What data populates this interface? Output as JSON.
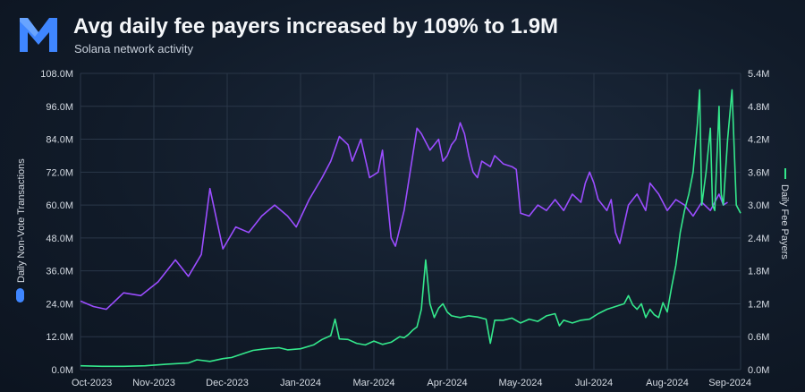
{
  "header": {
    "title": "Avg daily fee payers increased by 109% to 1.9M",
    "subtitle": "Solana network activity"
  },
  "colors": {
    "transactions": "#9b4dff",
    "fee_payers": "#34e88c",
    "logo": "#3f86ff",
    "grid": "#2a3748"
  },
  "chart_data": {
    "type": "line",
    "title": "Avg daily fee payers increased by 109% to 1.9M",
    "subtitle": "Solana network activity",
    "x_ticks": [
      "Oct-2023",
      "Nov-2023",
      "Dec-2023",
      "Jan-2024",
      "Mar-2024",
      "Apr-2024",
      "May-2024",
      "Jul-2024",
      "Aug-2024",
      "Sep-2024"
    ],
    "y_left": {
      "label": "Daily Non-Vote Transactions",
      "range": [
        0,
        108
      ],
      "ticks": [
        "0.0M",
        "12.0M",
        "24.0M",
        "36.0M",
        "48.0M",
        "60.0M",
        "72.0M",
        "84.0M",
        "96.0M",
        "108.0M"
      ]
    },
    "y_right": {
      "label": "Daily Fee Payers",
      "range": [
        0,
        5.4
      ],
      "ticks": [
        "0.0M",
        "0.6M",
        "1.2M",
        "1.8M",
        "2.4M",
        "3.0M",
        "3.6M",
        "4.2M",
        "4.8M",
        "5.4M"
      ]
    },
    "grid": true,
    "series": [
      {
        "name": "Daily Non-Vote Transactions",
        "axis": "left",
        "unit": "M",
        "points": [
          [
            0,
            25
          ],
          [
            3,
            23
          ],
          [
            6,
            22
          ],
          [
            10,
            28
          ],
          [
            14,
            27
          ],
          [
            18,
            32
          ],
          [
            22,
            40
          ],
          [
            25,
            34
          ],
          [
            28,
            42
          ],
          [
            30,
            66
          ],
          [
            33,
            44
          ],
          [
            36,
            52
          ],
          [
            39,
            50
          ],
          [
            42,
            56
          ],
          [
            45,
            60
          ],
          [
            48,
            56
          ],
          [
            50,
            52
          ],
          [
            53,
            62
          ],
          [
            56,
            70
          ],
          [
            58,
            76
          ],
          [
            60,
            85
          ],
          [
            62,
            82
          ],
          [
            63,
            76
          ],
          [
            65,
            84
          ],
          [
            67,
            70
          ],
          [
            69,
            72
          ],
          [
            70,
            80
          ],
          [
            71,
            64
          ],
          [
            72,
            48
          ],
          [
            73,
            45
          ],
          [
            75,
            58
          ],
          [
            77,
            78
          ],
          [
            78,
            88
          ],
          [
            79,
            86
          ],
          [
            81,
            80
          ],
          [
            83,
            84
          ],
          [
            84,
            76
          ],
          [
            85,
            78
          ],
          [
            86,
            82
          ],
          [
            87,
            84
          ],
          [
            88,
            90
          ],
          [
            89,
            86
          ],
          [
            90,
            78
          ],
          [
            91,
            72
          ],
          [
            92,
            70
          ],
          [
            93,
            76
          ],
          [
            95,
            74
          ],
          [
            96,
            78
          ],
          [
            98,
            75
          ],
          [
            100,
            74
          ],
          [
            101,
            73
          ],
          [
            102,
            57
          ],
          [
            104,
            56
          ],
          [
            106,
            60
          ],
          [
            108,
            58
          ],
          [
            110,
            62
          ],
          [
            112,
            58
          ],
          [
            114,
            64
          ],
          [
            116,
            61
          ],
          [
            117,
            68
          ],
          [
            118,
            72
          ],
          [
            119,
            68
          ],
          [
            120,
            62
          ],
          [
            122,
            58
          ],
          [
            123,
            62
          ],
          [
            124,
            50
          ],
          [
            125,
            46
          ],
          [
            127,
            60
          ],
          [
            129,
            64
          ],
          [
            131,
            58
          ],
          [
            132,
            68
          ],
          [
            134,
            64
          ],
          [
            136,
            58
          ],
          [
            138,
            62
          ],
          [
            140,
            60
          ],
          [
            142,
            56
          ],
          [
            144,
            61
          ],
          [
            146,
            58
          ],
          [
            148,
            64
          ],
          [
            149,
            60
          ],
          [
            150,
            61
          ]
        ]
      },
      {
        "name": "Daily Fee Payers",
        "axis": "right",
        "unit": "M",
        "points": [
          [
            0,
            0.07
          ],
          [
            5,
            0.06
          ],
          [
            10,
            0.06
          ],
          [
            15,
            0.07
          ],
          [
            20,
            0.1
          ],
          [
            25,
            0.12
          ],
          [
            27,
            0.18
          ],
          [
            30,
            0.15
          ],
          [
            33,
            0.2
          ],
          [
            35,
            0.22
          ],
          [
            38,
            0.3
          ],
          [
            40,
            0.35
          ],
          [
            43,
            0.38
          ],
          [
            46,
            0.4
          ],
          [
            48,
            0.36
          ],
          [
            51,
            0.38
          ],
          [
            54,
            0.45
          ],
          [
            56,
            0.55
          ],
          [
            58,
            0.62
          ],
          [
            59,
            0.92
          ],
          [
            60,
            0.56
          ],
          [
            62,
            0.55
          ],
          [
            64,
            0.48
          ],
          [
            66,
            0.45
          ],
          [
            68,
            0.52
          ],
          [
            70,
            0.46
          ],
          [
            72,
            0.5
          ],
          [
            74,
            0.6
          ],
          [
            75,
            0.58
          ],
          [
            76,
            0.64
          ],
          [
            77,
            0.72
          ],
          [
            78,
            0.78
          ],
          [
            79,
            1.1
          ],
          [
            80,
            2.0
          ],
          [
            81,
            1.2
          ],
          [
            82,
            0.95
          ],
          [
            83,
            1.12
          ],
          [
            84,
            1.2
          ],
          [
            85,
            1.05
          ],
          [
            86,
            0.98
          ],
          [
            88,
            0.95
          ],
          [
            90,
            0.98
          ],
          [
            92,
            0.96
          ],
          [
            94,
            0.92
          ],
          [
            95,
            0.48
          ],
          [
            96,
            0.9
          ],
          [
            98,
            0.9
          ],
          [
            100,
            0.94
          ],
          [
            102,
            0.85
          ],
          [
            104,
            0.92
          ],
          [
            106,
            0.88
          ],
          [
            108,
            0.98
          ],
          [
            110,
            1.02
          ],
          [
            111,
            0.8
          ],
          [
            112,
            0.9
          ],
          [
            114,
            0.85
          ],
          [
            116,
            0.9
          ],
          [
            118,
            0.92
          ],
          [
            120,
            1.02
          ],
          [
            122,
            1.1
          ],
          [
            124,
            1.15
          ],
          [
            126,
            1.2
          ],
          [
            127,
            1.35
          ],
          [
            128,
            1.18
          ],
          [
            129,
            1.1
          ],
          [
            130,
            1.2
          ],
          [
            131,
            0.95
          ],
          [
            132,
            1.1
          ],
          [
            133,
            1.0
          ],
          [
            134,
            0.95
          ],
          [
            135,
            1.22
          ],
          [
            136,
            1.05
          ],
          [
            137,
            1.5
          ],
          [
            138,
            1.9
          ],
          [
            139,
            2.5
          ],
          [
            140,
            2.9
          ],
          [
            141,
            3.2
          ],
          [
            142,
            3.6
          ],
          [
            143,
            4.5
          ],
          [
            143.5,
            5.1
          ],
          [
            144,
            3.0
          ],
          [
            145,
            3.6
          ],
          [
            146,
            4.4
          ],
          [
            146.5,
            3.0
          ],
          [
            147,
            2.9
          ],
          [
            148,
            4.8
          ],
          [
            148.5,
            3.2
          ],
          [
            149,
            3.0
          ],
          [
            150,
            4.2
          ],
          [
            151,
            5.1
          ],
          [
            152,
            3.0
          ],
          [
            153,
            2.85
          ]
        ]
      }
    ]
  }
}
